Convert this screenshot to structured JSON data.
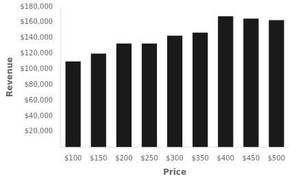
{
  "chart_data": {
    "type": "bar",
    "categories": [
      "$100",
      "$150",
      "$200",
      "$250",
      "$300",
      "$350",
      "$400",
      "$450",
      "$500"
    ],
    "values": [
      110000,
      120000,
      133000,
      133000,
      143000,
      147000,
      168000,
      165000,
      163000
    ],
    "color": "#1a1a1a",
    "xlabel": "Price",
    "ylabel": "Revenue",
    "ylim": [
      0,
      180000
    ],
    "yticks": [
      {
        "value": 20000,
        "label": "$20,000"
      },
      {
        "value": 40000,
        "label": "$40,000"
      },
      {
        "value": 60000,
        "label": "$60,000"
      },
      {
        "value": 80000,
        "label": "$80,000"
      },
      {
        "value": 100000,
        "label": "$100,000"
      },
      {
        "value": 120000,
        "label": "$120,000"
      },
      {
        "value": 140000,
        "label": "$140,000"
      },
      {
        "value": 160000,
        "label": "$160,000"
      },
      {
        "value": 180000,
        "label": "$180,000"
      }
    ],
    "grid": false
  }
}
